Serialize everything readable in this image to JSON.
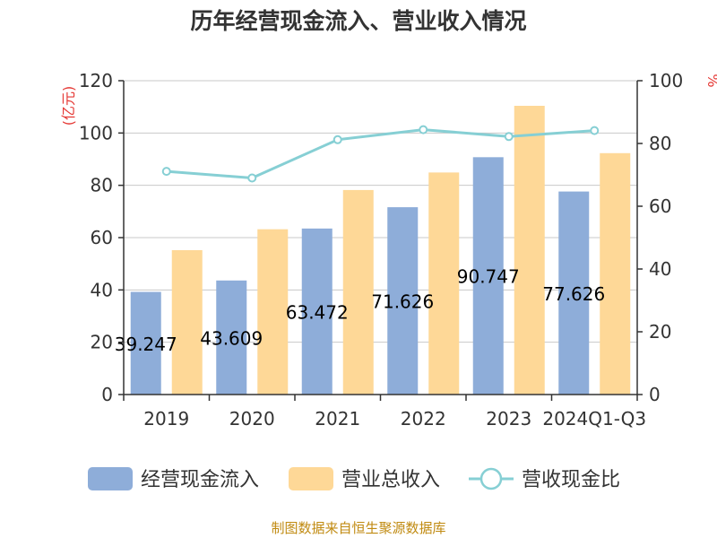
{
  "colors": {
    "cash_inflow": "#8eadd9",
    "revenue": "#fed897",
    "ratio": "#86cfd4",
    "unit_label": "#e53935",
    "source": "#c08a10",
    "axis": "#333333",
    "grid": "#c8c8c8"
  },
  "source_note": "制图数据来自恒生聚源数据库",
  "chart_data": {
    "type": "bar",
    "title": "历年经营现金流入、营业收入情况",
    "categories": [
      "2019",
      "2020",
      "2021",
      "2022",
      "2023",
      "2024Q1-Q3"
    ],
    "series": [
      {
        "name": "经营现金流入",
        "type": "bar",
        "axis": "left",
        "values": [
          39.247,
          43.609,
          63.472,
          71.626,
          90.747,
          77.626
        ],
        "labels": [
          "39.247",
          "43.609",
          "63.472",
          "71.626",
          "90.747",
          "77.626"
        ]
      },
      {
        "name": "营业总收入",
        "type": "bar",
        "axis": "left",
        "values": [
          55.2,
          63.2,
          78.2,
          84.9,
          110.4,
          92.3
        ]
      },
      {
        "name": "营收现金比",
        "type": "line",
        "axis": "right",
        "values": [
          71.1,
          69.0,
          81.2,
          84.4,
          82.2,
          84.1
        ]
      }
    ],
    "y_left": {
      "label": "(亿元)",
      "min": 0,
      "max": 120,
      "ticks": [
        "0",
        "20",
        "40",
        "60",
        "80",
        "100",
        "120"
      ]
    },
    "y_right": {
      "label": "%",
      "min": 0,
      "max": 100,
      "ticks": [
        "0",
        "20",
        "40",
        "60",
        "80",
        "100"
      ]
    },
    "grid": true,
    "legend": "bottom"
  }
}
